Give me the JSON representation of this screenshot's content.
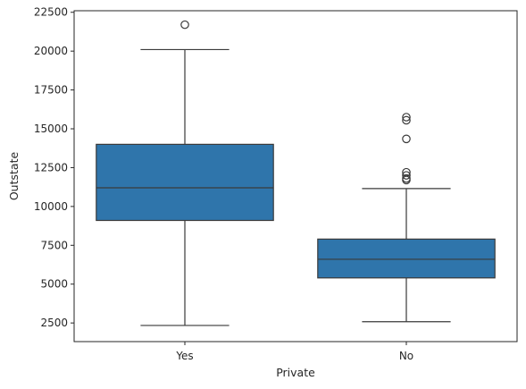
{
  "chart_data": {
    "type": "box",
    "title": "",
    "xlabel": "Private",
    "ylabel": "Outstate",
    "categories": [
      "Yes",
      "No"
    ],
    "ylim": [
      1300,
      22600
    ],
    "yticks": [
      2500,
      5000,
      7500,
      10000,
      12500,
      15000,
      17500,
      20000,
      22500
    ],
    "grid": false,
    "box_color": "#2f75ab",
    "line_color": "#3a3a3a",
    "boxes": [
      {
        "category": "Yes",
        "whisker_low": 2340,
        "q1": 9100,
        "median": 11200,
        "q3": 14000,
        "whisker_high": 20100,
        "outliers": [
          21700
        ]
      },
      {
        "category": "No",
        "whisker_low": 2580,
        "q1": 5400,
        "median": 6600,
        "q3": 7900,
        "whisker_high": 11150,
        "outliers": [
          11700,
          11800,
          12000,
          12200,
          14350,
          15550,
          15750
        ]
      }
    ]
  }
}
